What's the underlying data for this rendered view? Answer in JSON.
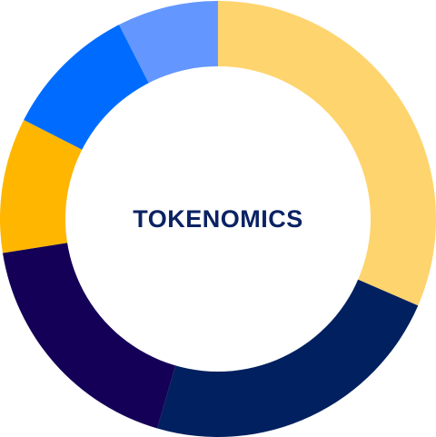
{
  "chart_data": {
    "type": "pie",
    "title": "TOKENOMICS",
    "donut": true,
    "start_angle_deg": 0,
    "direction": "clockwise",
    "values": [
      31.5,
      23,
      18,
      10,
      10,
      7.5
    ],
    "colors": [
      "#FED46E",
      "#00205F",
      "#150057",
      "#FFB600",
      "#006CFF",
      "#6397FF"
    ]
  },
  "colors": {
    "title_color": "#0B2263",
    "background": "#FFFFFF"
  }
}
